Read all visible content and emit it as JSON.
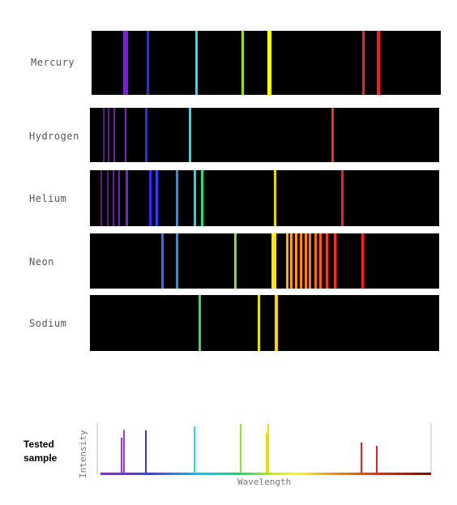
{
  "spectra": [
    {
      "label": "Mercury",
      "lines": [
        {
          "x": 152,
          "w": 6,
          "color": "#7a1fd6"
        },
        {
          "x": 181,
          "w": 3,
          "color": "#2b2bff"
        },
        {
          "x": 241,
          "w": 3,
          "color": "#22e0e8"
        },
        {
          "x": 298,
          "w": 3,
          "color": "#8ee62a"
        },
        {
          "x": 330,
          "w": 5,
          "color": "#ffff00"
        },
        {
          "x": 447,
          "w": 3,
          "color": "#ff1a1a"
        },
        {
          "x": 465,
          "w": 4,
          "color": "#ff1a1a"
        }
      ]
    },
    {
      "label": "Hydrogen",
      "lines": [
        {
          "x": 127,
          "w": 2,
          "color": "#5a1a8a"
        },
        {
          "x": 133,
          "w": 2,
          "color": "#5a1a8a"
        },
        {
          "x": 140,
          "w": 2,
          "color": "#6a1fa8"
        },
        {
          "x": 154,
          "w": 2,
          "color": "#7a22d0"
        },
        {
          "x": 179,
          "w": 3,
          "color": "#2a2aff"
        },
        {
          "x": 233,
          "w": 3,
          "color": "#22e0e8"
        },
        {
          "x": 409,
          "w": 3,
          "color": "#ff2a1a"
        }
      ]
    },
    {
      "label": "Helium",
      "lines": [
        {
          "x": 124,
          "w": 2,
          "color": "#5a1a8a"
        },
        {
          "x": 132,
          "w": 2,
          "color": "#5a1a8a"
        },
        {
          "x": 139,
          "w": 2,
          "color": "#6a1fa8"
        },
        {
          "x": 146,
          "w": 2,
          "color": "#7020b8"
        },
        {
          "x": 155,
          "w": 3,
          "color": "#7a22d0"
        },
        {
          "x": 184,
          "w": 3,
          "color": "#2a2aff"
        },
        {
          "x": 192,
          "w": 3,
          "color": "#2a40ff"
        },
        {
          "x": 217,
          "w": 3,
          "color": "#1e90ff"
        },
        {
          "x": 239,
          "w": 3,
          "color": "#22d8e0"
        },
        {
          "x": 248,
          "w": 3,
          "color": "#22e080"
        },
        {
          "x": 338,
          "w": 3,
          "color": "#e8d400"
        },
        {
          "x": 421,
          "w": 3,
          "color": "#ff1a1a"
        }
      ]
    },
    {
      "label": "Neon",
      "lines": [
        {
          "x": 199,
          "w": 3,
          "color": "#2a70ff"
        },
        {
          "x": 217,
          "w": 3,
          "color": "#1e90ff"
        },
        {
          "x": 289,
          "w": 3,
          "color": "#7ee62a"
        },
        {
          "x": 335,
          "w": 6,
          "color": "#ffe600"
        },
        {
          "x": 353,
          "w": 3,
          "color": "#ffb000"
        },
        {
          "x": 358,
          "w": 3,
          "color": "#ffa000"
        },
        {
          "x": 364,
          "w": 3,
          "color": "#ff9800"
        },
        {
          "x": 370,
          "w": 3,
          "color": "#ff8c00"
        },
        {
          "x": 376,
          "w": 3,
          "color": "#ff8000"
        },
        {
          "x": 381,
          "w": 3,
          "color": "#ff7a00"
        },
        {
          "x": 388,
          "w": 3,
          "color": "#ff6a00"
        },
        {
          "x": 394,
          "w": 3,
          "color": "#ff5a00"
        },
        {
          "x": 402,
          "w": 3,
          "color": "#ff3a10"
        },
        {
          "x": 412,
          "w": 3,
          "color": "#ff2a1a"
        },
        {
          "x": 446,
          "w": 3,
          "color": "#ff1a1a"
        }
      ]
    },
    {
      "label": "Sodium",
      "lines": [
        {
          "x": 245,
          "w": 3,
          "color": "#22e07a"
        },
        {
          "x": 318,
          "w": 3,
          "color": "#e8e000"
        },
        {
          "x": 339,
          "w": 4,
          "color": "#ffd400"
        }
      ]
    }
  ],
  "tested_sample": {
    "label": "Tested sample",
    "ylabel": "Intensity",
    "xlabel": "Wavelength",
    "peaks": [
      {
        "x": 150,
        "intensity": 0.72,
        "color": "#9a3ad8"
      },
      {
        "x": 153,
        "intensity": 0.88,
        "color": "#9a3ad8"
      },
      {
        "x": 180,
        "intensity": 0.87,
        "color": "#3a3ac8"
      },
      {
        "x": 240,
        "intensity": 0.95,
        "color": "#22e0e8"
      },
      {
        "x": 297,
        "intensity": 1.0,
        "color": "#8ee62a"
      },
      {
        "x": 329,
        "intensity": 0.82,
        "color": "#e8e000"
      },
      {
        "x": 331,
        "intensity": 1.0,
        "color": "#e8e000"
      },
      {
        "x": 446,
        "intensity": 0.62,
        "color": "#e82020"
      },
      {
        "x": 465,
        "intensity": 0.55,
        "color": "#e82020"
      }
    ]
  }
}
